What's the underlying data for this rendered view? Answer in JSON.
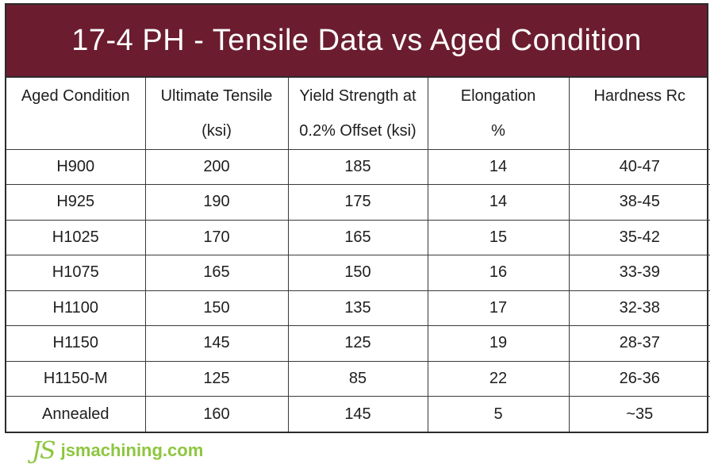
{
  "title": "17-4 PH - Tensile Data vs Aged Condition",
  "headers": [
    [
      "Aged Condition"
    ],
    [
      "Ultimate Tensile",
      "(ksi)"
    ],
    [
      "Yield Strength at",
      "0.2% Offset (ksi)"
    ],
    [
      "Elongation",
      "%"
    ],
    [
      "Hardness Rc"
    ]
  ],
  "rows": [
    [
      "H900",
      "200",
      "185",
      "14",
      "40-47"
    ],
    [
      "H925",
      "190",
      "175",
      "14",
      "38-45"
    ],
    [
      "H1025",
      "170",
      "165",
      "15",
      "35-42"
    ],
    [
      "H1075",
      "165",
      "150",
      "16",
      "33-39"
    ],
    [
      "H1100",
      "150",
      "135",
      "17",
      "32-38"
    ],
    [
      "H1150",
      "145",
      "125",
      "19",
      "28-37"
    ],
    [
      "H1150-M",
      "125",
      "85",
      "22",
      "26-36"
    ],
    [
      "Annealed",
      "160",
      "145",
      "5",
      "~35"
    ]
  ],
  "brand": {
    "logo_text": "JS",
    "site": "jsmachining.com"
  },
  "colors": {
    "title_bg": "#6b1d2f",
    "brand_green": "#8dc63f"
  }
}
